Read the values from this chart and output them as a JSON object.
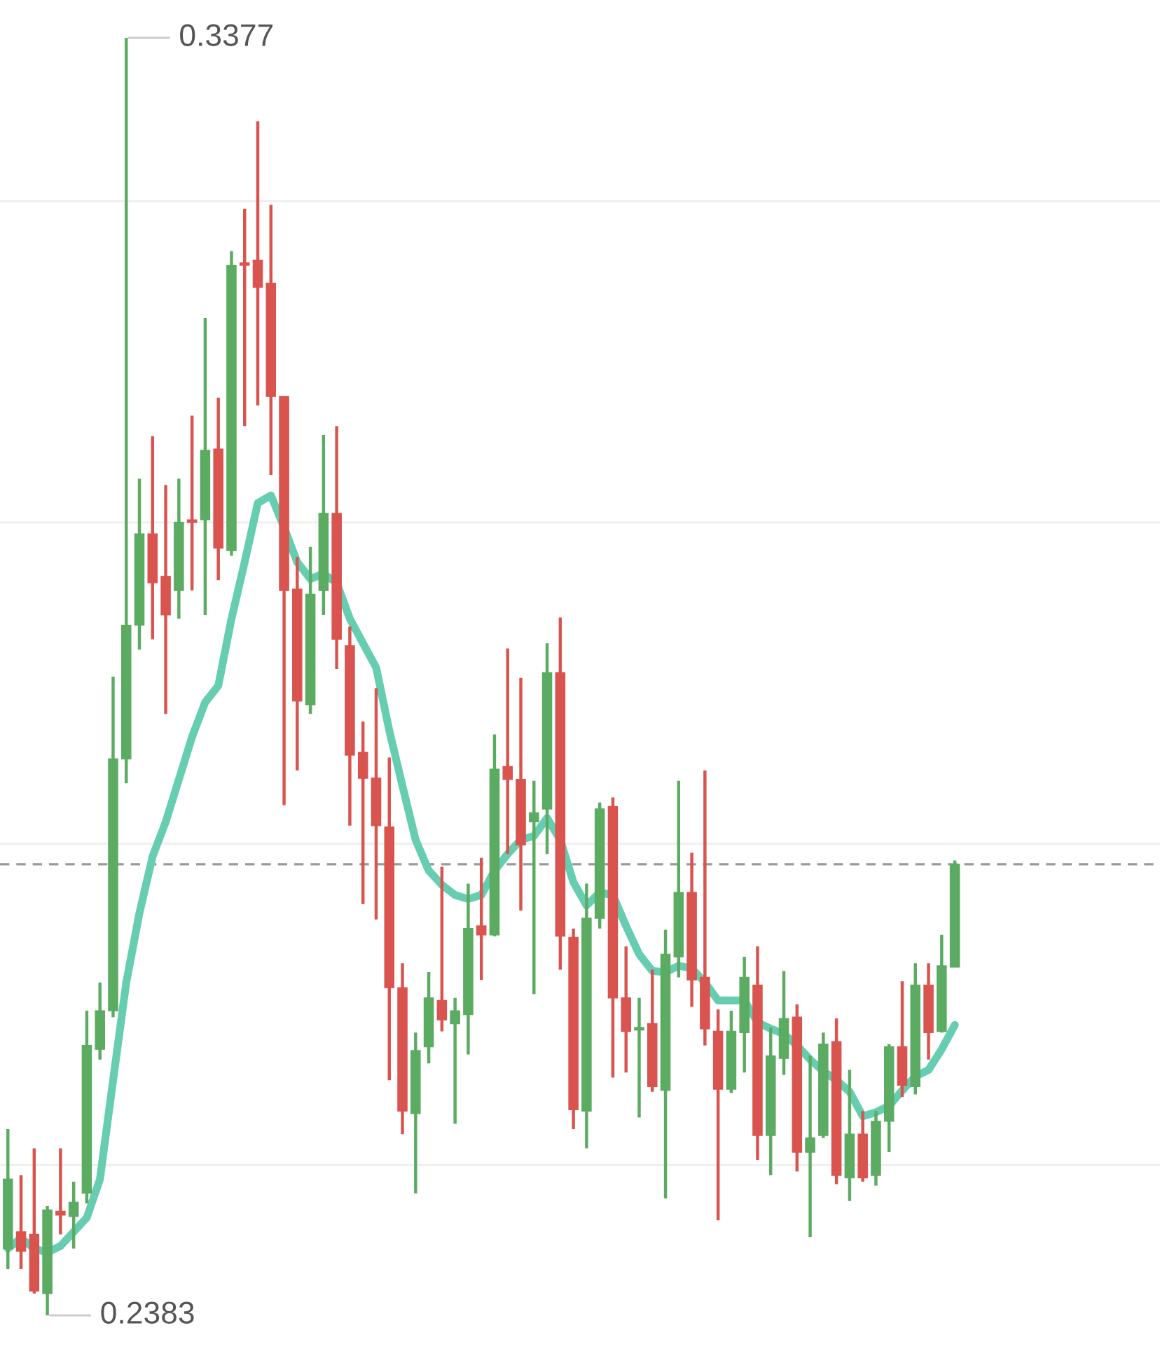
{
  "chart_data": {
    "type": "candlestick",
    "categories": [
      null,
      null,
      null,
      null,
      null,
      null,
      null,
      null,
      null,
      null,
      null,
      null,
      null,
      null,
      null,
      null,
      null,
      null,
      null,
      null,
      null,
      null,
      null,
      null,
      null,
      null,
      null,
      null,
      null,
      null,
      null,
      null,
      null,
      null,
      null,
      null,
      null,
      null,
      null,
      null,
      null,
      null,
      null,
      null,
      null,
      null,
      null,
      null,
      null,
      null,
      null,
      null,
      null,
      null,
      null,
      null,
      null,
      null,
      null,
      null,
      null,
      null,
      null,
      null,
      null,
      null,
      null,
      null,
      null,
      null,
      null,
      null,
      null
    ],
    "ohlc": [
      [
        0.2435,
        0.2528,
        0.2419,
        0.2489
      ],
      [
        0.2448,
        0.2492,
        0.2419,
        0.2433
      ],
      [
        0.2446,
        0.2513,
        0.24,
        0.2402
      ],
      [
        0.24,
        0.2468,
        0.2383,
        0.2465
      ],
      [
        0.2464,
        0.2513,
        0.2446,
        0.2461
      ],
      [
        0.246,
        0.2487,
        0.2435,
        0.2471
      ],
      [
        0.2478,
        0.262,
        0.247,
        0.2593
      ],
      [
        0.259,
        0.2642,
        0.2582,
        0.262
      ],
      [
        0.262,
        0.288,
        0.2615,
        0.2816
      ],
      [
        0.2816,
        0.3377,
        0.2797,
        0.292
      ],
      [
        0.292,
        0.3034,
        0.2901,
        0.2991
      ],
      [
        0.2991,
        0.3067,
        0.2909,
        0.2953
      ],
      [
        0.2958,
        0.3029,
        0.2851,
        0.2928
      ],
      [
        0.2947,
        0.3034,
        0.2925,
        0.3
      ],
      [
        0.3002,
        0.3083,
        0.2947,
        0.3
      ],
      [
        0.3002,
        0.3159,
        0.2928,
        0.3056
      ],
      [
        0.3057,
        0.3097,
        0.2955,
        0.298
      ],
      [
        0.2978,
        0.3211,
        0.2974,
        0.32
      ],
      [
        0.3202,
        0.3244,
        0.3075,
        0.32
      ],
      [
        0.3204,
        0.3312,
        0.3091,
        0.3183
      ],
      [
        0.3186,
        0.3247,
        0.3037,
        0.3098
      ],
      [
        0.3098,
        0.3098,
        0.278,
        0.2947
      ],
      [
        0.2948,
        0.2973,
        0.2807,
        0.2861
      ],
      [
        0.2858,
        0.2981,
        0.2851,
        0.2944
      ],
      [
        0.2947,
        0.3068,
        0.2928,
        0.3007
      ],
      [
        0.3007,
        0.3075,
        0.2886,
        0.2909
      ],
      [
        0.2904,
        0.2919,
        0.2764,
        0.2819
      ],
      [
        0.2821,
        0.2845,
        0.2703,
        0.2801
      ],
      [
        0.2801,
        0.2871,
        0.2691,
        0.2764
      ],
      [
        0.2763,
        0.2817,
        0.2566,
        0.2638
      ],
      [
        0.2638,
        0.2657,
        0.2524,
        0.2542
      ],
      [
        0.254,
        0.2603,
        0.2478,
        0.2589
      ],
      [
        0.2592,
        0.265,
        0.2579,
        0.263
      ],
      [
        0.2628,
        0.2732,
        0.2604,
        0.2613
      ],
      [
        0.261,
        0.263,
        0.2532,
        0.262
      ],
      [
        0.2617,
        0.2719,
        0.2586,
        0.2684
      ],
      [
        0.2686,
        0.2739,
        0.2644,
        0.2679
      ],
      [
        0.2679,
        0.2835,
        0.2678,
        0.2808
      ],
      [
        0.281,
        0.2902,
        0.2742,
        0.28
      ],
      [
        0.28,
        0.2879,
        0.2698,
        0.2749
      ],
      [
        0.2767,
        0.2799,
        0.2633,
        0.2774
      ],
      [
        0.2777,
        0.2906,
        0.2742,
        0.2883
      ],
      [
        0.2883,
        0.2926,
        0.2652,
        0.2678
      ],
      [
        0.2677,
        0.2684,
        0.2528,
        0.2543
      ],
      [
        0.2542,
        0.2719,
        0.2513,
        0.2692
      ],
      [
        0.2692,
        0.2782,
        0.2684,
        0.2777
      ],
      [
        0.2779,
        0.2786,
        0.2568,
        0.263
      ],
      [
        0.263,
        0.267,
        0.2572,
        0.2604
      ],
      [
        0.2605,
        0.263,
        0.2537,
        0.2607
      ],
      [
        0.261,
        0.2652,
        0.2557,
        0.2561
      ],
      [
        0.2558,
        0.2683,
        0.2474,
        0.2664
      ],
      [
        0.2662,
        0.2799,
        0.2646,
        0.2712
      ],
      [
        0.2712,
        0.2743,
        0.2623,
        0.2644
      ],
      [
        0.2646,
        0.2807,
        0.2593,
        0.2606
      ],
      [
        0.2604,
        0.2621,
        0.2457,
        0.2559
      ],
      [
        0.2559,
        0.262,
        0.2556,
        0.2604
      ],
      [
        0.2603,
        0.2662,
        0.2572,
        0.2646
      ],
      [
        0.264,
        0.267,
        0.2504,
        0.2523
      ],
      [
        0.2523,
        0.2607,
        0.2492,
        0.2585
      ],
      [
        0.2583,
        0.2651,
        0.257,
        0.2614
      ],
      [
        0.2615,
        0.2625,
        0.2495,
        0.251
      ],
      [
        0.251,
        0.2585,
        0.2444,
        0.2521
      ],
      [
        0.2523,
        0.2603,
        0.2521,
        0.2594
      ],
      [
        0.2596,
        0.2614,
        0.2485,
        0.2492
      ],
      [
        0.249,
        0.2574,
        0.2472,
        0.2524
      ],
      [
        0.2524,
        0.2542,
        0.2487,
        0.249
      ],
      [
        0.2492,
        0.2542,
        0.2484,
        0.2534
      ],
      [
        0.2534,
        0.2594,
        0.251,
        0.2592
      ],
      [
        0.2592,
        0.2643,
        0.2553,
        0.2562
      ],
      [
        0.2561,
        0.2657,
        0.2555,
        0.264
      ],
      [
        0.264,
        0.2657,
        0.2582,
        0.2603
      ],
      [
        0.2604,
        0.2679,
        0.2603,
        0.2655
      ],
      [
        0.2654,
        0.2737,
        0.2654,
        0.2734
      ]
    ],
    "colors": [
      "#5bab62",
      "#d9534f",
      "#d9534f",
      "#5bab62",
      "#d9534f",
      "#5bab62",
      "#5bab62",
      "#5bab62",
      "#5bab62",
      "#5bab62",
      "#5bab62",
      "#d9534f",
      "#d9534f",
      "#5bab62",
      "#d9534f",
      "#5bab62",
      "#d9534f",
      "#5bab62",
      "#d9534f",
      "#d9534f",
      "#d9534f",
      "#d9534f",
      "#d9534f",
      "#5bab62",
      "#5bab62",
      "#d9534f",
      "#d9534f",
      "#d9534f",
      "#d9534f",
      "#d9534f",
      "#d9534f",
      "#5bab62",
      "#5bab62",
      "#d9534f",
      "#5bab62",
      "#5bab62",
      "#d9534f",
      "#5bab62",
      "#d9534f",
      "#d9534f",
      "#5bab62",
      "#5bab62",
      "#d9534f",
      "#d9534f",
      "#5bab62",
      "#5bab62",
      "#d9534f",
      "#d9534f",
      "#5bab62",
      "#d9534f",
      "#5bab62",
      "#5bab62",
      "#d9534f",
      "#d9534f",
      "#d9534f",
      "#5bab62",
      "#5bab62",
      "#d9534f",
      "#5bab62",
      "#5bab62",
      "#d9534f",
      "#5bab62",
      "#5bab62",
      "#d9534f",
      "#5bab62",
      "#d9534f",
      "#5bab62",
      "#5bab62",
      "#d9534f",
      "#5bab62",
      "#d9534f",
      "#5bab62",
      "#5bab62"
    ],
    "series": [
      {
        "type": "line",
        "color": "#66cdb0",
        "values": [
          0.2435,
          0.2443,
          0.2435,
          0.2432,
          0.2437,
          0.2448,
          0.2459,
          0.2489,
          0.2566,
          0.2642,
          0.2696,
          0.274,
          0.2767,
          0.28,
          0.2833,
          0.286,
          0.2873,
          0.2925,
          0.2969,
          0.3015,
          0.3021,
          0.2996,
          0.2969,
          0.2956,
          0.296,
          0.2953,
          0.2925,
          0.2906,
          0.2887,
          0.2838,
          0.2795,
          0.2753,
          0.2729,
          0.2718,
          0.271,
          0.2707,
          0.271,
          0.2729,
          0.2742,
          0.2753,
          0.2756,
          0.277,
          0.2753,
          0.272,
          0.2702,
          0.2712,
          0.271,
          0.2686,
          0.2664,
          0.2651,
          0.265,
          0.2655,
          0.2653,
          0.2642,
          0.2628,
          0.2628,
          0.2628,
          0.2611,
          0.2606,
          0.2602,
          0.2593,
          0.2582,
          0.2573,
          0.2566,
          0.2557,
          0.2538,
          0.2541,
          0.2546,
          0.2558,
          0.2569,
          0.2574,
          0.259,
          0.2609
        ]
      }
    ],
    "ref_lines": [
      {
        "axis": "y",
        "value": 0.2734,
        "color": "#999999",
        "line_style": "dashed"
      }
    ],
    "annotations": [
      "0.3377",
      "0.2383"
    ],
    "grid": "y"
  }
}
